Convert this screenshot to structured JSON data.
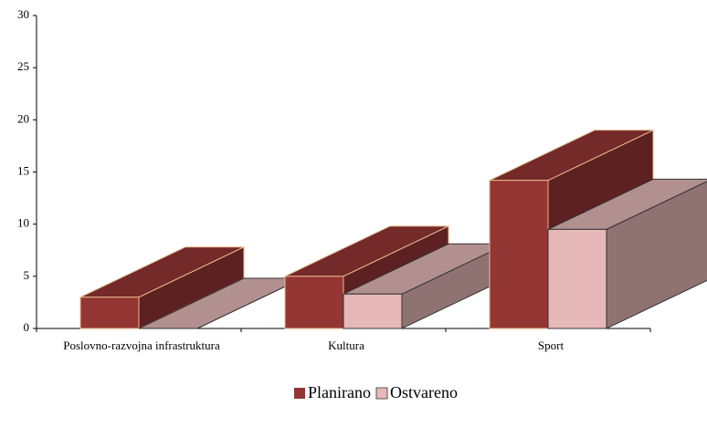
{
  "chart_data": {
    "type": "bar3d",
    "categories": [
      "Poslovno-razvojna infrastruktura",
      "Kultura",
      "Sport"
    ],
    "series": [
      {
        "name": "Planirano",
        "color": "#943634",
        "values": [
          3,
          5,
          14.2
        ]
      },
      {
        "name": "Ostvareno",
        "color": "#e6b9b8",
        "values": [
          0,
          3.3,
          9.5
        ]
      }
    ],
    "ylim": [
      0,
      30
    ],
    "yticks": [
      0,
      5,
      10,
      15,
      20,
      25,
      30
    ],
    "legend": "bottom"
  }
}
